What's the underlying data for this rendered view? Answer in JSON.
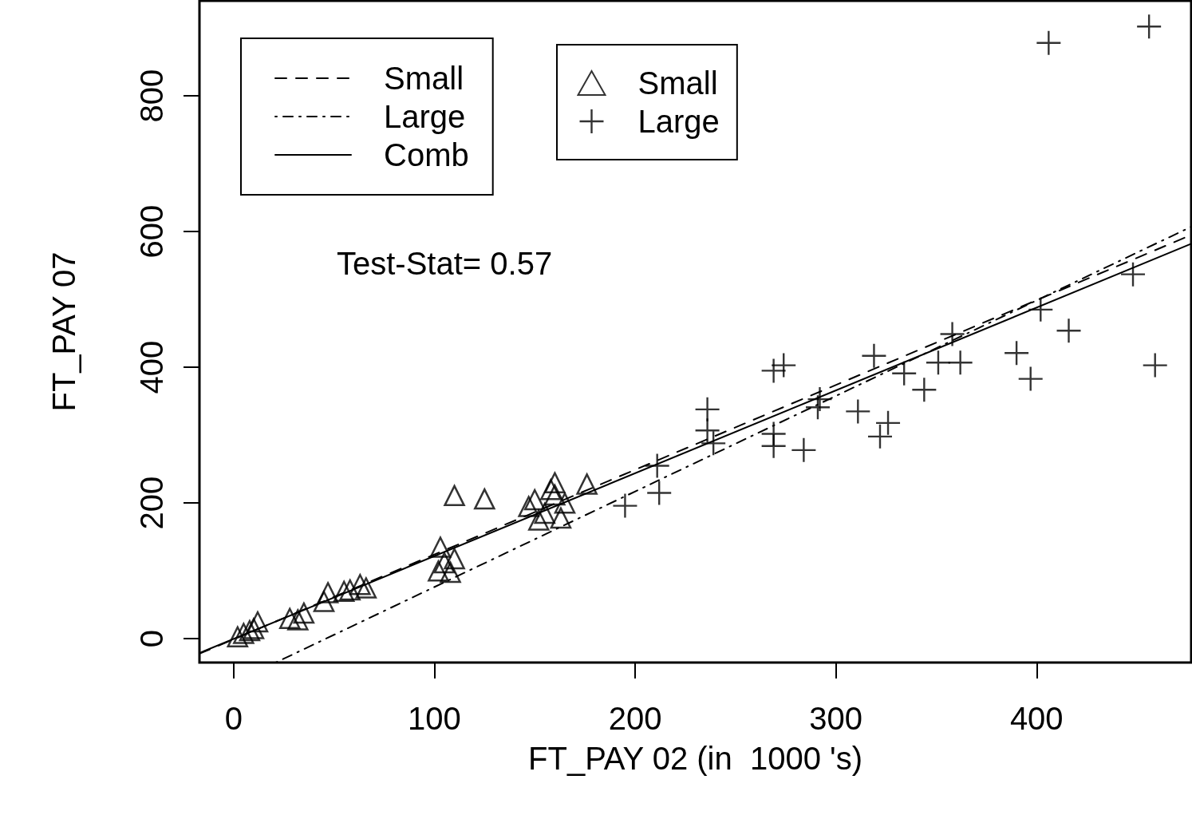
{
  "chart_data": {
    "type": "scatter",
    "xlabel": "FT_PAY 02 (in  1000 's)",
    "ylabel": "FT_PAY 07",
    "annotations": [
      "Test-Stat= 0.57"
    ],
    "xlim": [
      -17,
      477
    ],
    "ylim": [
      -35,
      940
    ],
    "xticks": [
      0,
      100,
      200,
      300,
      400
    ],
    "yticks": [
      0,
      200,
      400,
      600,
      800
    ],
    "grid": false,
    "legend": "top left",
    "series": [
      {
        "name": "Small",
        "type": "line",
        "line_style": "dashed",
        "marker": "none",
        "color": "#000000",
        "x": [
          -17,
          477
        ],
        "values": [
          -22,
          595
        ]
      },
      {
        "name": "Large",
        "type": "line",
        "line_style": "dotted",
        "marker": "none",
        "color": "#000000",
        "x": [
          21,
          477
        ],
        "values": [
          -35,
          607
        ]
      },
      {
        "name": "Comb",
        "type": "line",
        "line_style": "solid",
        "marker": "none",
        "color": "#000000",
        "x": [
          -17,
          477
        ],
        "values": [
          -21,
          582
        ]
      },
      {
        "name": "Small",
        "marker": "triangle",
        "color": "#000000",
        "x": [
          2,
          5,
          8,
          10,
          12,
          28,
          32,
          35,
          45,
          47,
          55,
          58,
          63,
          66,
          103,
          105,
          102,
          108,
          110,
          110,
          125,
          147,
          150,
          152,
          155,
          158,
          160,
          163,
          165,
          176,
          160
        ],
        "values": [
          3,
          8,
          12,
          15,
          25,
          30,
          28,
          38,
          55,
          68,
          70,
          72,
          80,
          75,
          135,
          112,
          100,
          98,
          118,
          211,
          206,
          195,
          205,
          175,
          185,
          220,
          212,
          178,
          200,
          228,
          230
        ]
      },
      {
        "name": "Large",
        "marker": "cross",
        "color": "#000000",
        "x": [
          195,
          212,
          211,
          236,
          236,
          239,
          269,
          274,
          269,
          269,
          284,
          291,
          292,
          311,
          319,
          326,
          322,
          334,
          344,
          351,
          362,
          358,
          390,
          397,
          402,
          416,
          459,
          448,
          406,
          456
        ],
        "values": [
          196,
          215,
          255,
          338,
          307,
          288,
          395,
          403,
          302,
          284,
          278,
          341,
          353,
          335,
          417,
          318,
          298,
          391,
          367,
          407,
          407,
          449,
          421,
          383,
          485,
          454,
          403,
          537,
          878,
          902
        ]
      }
    ]
  }
}
